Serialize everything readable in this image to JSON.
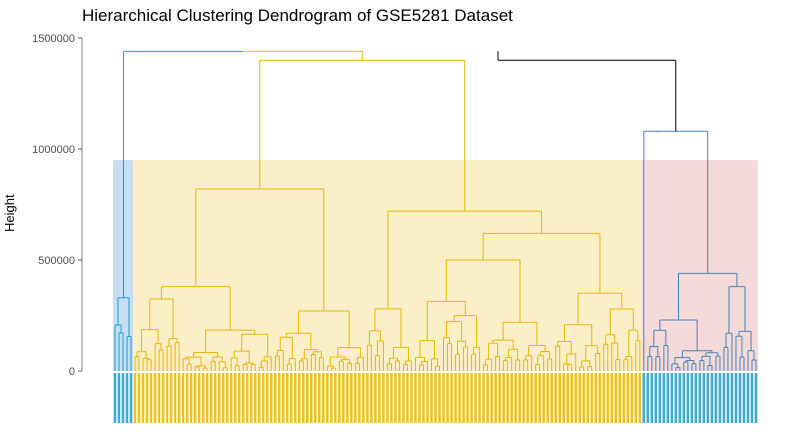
{
  "chart_data": {
    "type": "dendrogram",
    "title": "Hierarchical Clustering Dendrogram of GSE5281 Dataset",
    "ylabel": "Height",
    "xlabel": "",
    "ylim": [
      0,
      1500000
    ],
    "y_ticks": [
      0,
      500000,
      1000000,
      1500000
    ],
    "y_tick_labels": [
      "0",
      "500000",
      "1000000",
      "1500000"
    ],
    "cut_height": 950000,
    "grid": false,
    "leaf_count": 161,
    "colors": {
      "cluster_1": "#1f9bc7",
      "cluster_2": "#e6b700",
      "cluster_3": "#4682b4",
      "cluster_3_top": "#d2491f",
      "root": "#000000",
      "cluster_1_rect": "#c6dff2",
      "cluster_2_rect": "#fbefc7",
      "cluster_3_rect": "#f5dada"
    },
    "clusters": [
      {
        "name": "cluster_1",
        "leaves": 5,
        "merge_height": 330000,
        "join_height": 1440000
      },
      {
        "name": "cluster_2",
        "leaves": 127,
        "merge_height": 1400000
      },
      {
        "name": "cluster_3",
        "leaves": 29,
        "merge_height": 1080000
      }
    ],
    "merges": [
      {
        "left": "cluster_1",
        "right": "cluster_2",
        "height": 1440000
      },
      {
        "left": "cluster_1+cluster_2",
        "right": "cluster_3",
        "height": 1400000
      }
    ],
    "cluster_2_structure": {
      "top": 1400000,
      "sub_left": 820000,
      "sub_right": 720000,
      "inner": [
        380000,
        270000,
        620000,
        500000,
        350000,
        280000
      ]
    },
    "cluster_3_structure": {
      "top": 1080000,
      "sub": 440000,
      "inner": [
        380000,
        230000,
        170000
      ]
    }
  }
}
